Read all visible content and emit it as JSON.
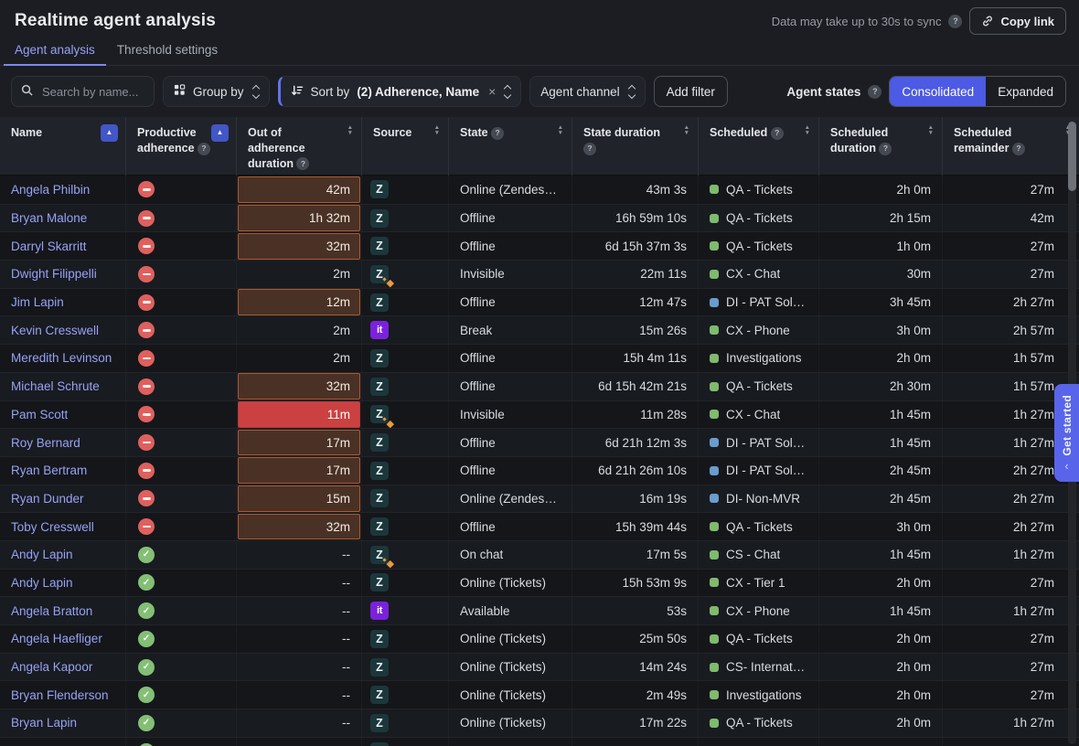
{
  "header": {
    "title": "Realtime agent analysis",
    "sync_note": "Data may take up to 30s to sync",
    "copy_link_label": "Copy link"
  },
  "tabs": [
    {
      "label": "Agent analysis",
      "active": true
    },
    {
      "label": "Threshold settings",
      "active": false
    }
  ],
  "toolbar": {
    "search_placeholder": "Search by name...",
    "group_by_label": "Group by",
    "sort_prefix": "Sort by",
    "sort_value": "(2) Adherence, Name",
    "agent_channel_label": "Agent channel",
    "add_filter_label": "Add filter",
    "agent_states_label": "Agent states",
    "toggle_options": [
      "Consolidated",
      "Expanded"
    ],
    "toggle_selected": "Consolidated"
  },
  "get_started_label": "Get started",
  "colors": {
    "accent_blue": "#4c5ae4",
    "link": "#98a2f4",
    "warn_bg": "#4a3126",
    "warn_border": "#aa5a2d",
    "alert_bg": "#cb4141",
    "adherence_bad": "#df605d",
    "adherence_good": "#83bf75",
    "dot_green": "#7fba6d",
    "dot_blue": "#699ccd",
    "zendesk_icon_bg": "#1c373b",
    "it_icon_bg": "#7a22dd",
    "get_started_bg": "#5865ea"
  },
  "table": {
    "columns": [
      {
        "label": "Name",
        "help": false,
        "sort": "asc"
      },
      {
        "label": "Productive adherence",
        "help": true,
        "sort": "asc"
      },
      {
        "label": "Out of adherence duration",
        "help": true,
        "sort": "both"
      },
      {
        "label": "Source",
        "help": false,
        "sort": "both"
      },
      {
        "label": "State",
        "help": true,
        "sort": "both"
      },
      {
        "label": "State duration",
        "help": true,
        "sort": "both"
      },
      {
        "label": "Scheduled",
        "help": true,
        "sort": "both"
      },
      {
        "label": "Scheduled duration",
        "help": true,
        "sort": "both"
      },
      {
        "label": "Scheduled remainder",
        "help": true,
        "sort": "both"
      }
    ],
    "rows": [
      {
        "name": "Angela Philbin",
        "adherence": "bad",
        "out": "42m",
        "out_style": "warn",
        "source": "zendesk",
        "state": "Online (Zendesk D...",
        "state_duration": "43m 3s",
        "sched_color": "green",
        "sched": "QA - Tickets",
        "sched_duration": "2h 0m",
        "sched_remainder": "27m"
      },
      {
        "name": "Bryan Malone",
        "adherence": "bad",
        "out": "1h 32m",
        "out_style": "warn",
        "source": "zendesk",
        "state": "Offline",
        "state_duration": "16h 59m 10s",
        "sched_color": "green",
        "sched": "QA - Tickets",
        "sched_duration": "2h 15m",
        "sched_remainder": "42m"
      },
      {
        "name": "Darryl Skarritt",
        "adherence": "bad",
        "out": "32m",
        "out_style": "warn",
        "source": "zendesk",
        "state": "Offline",
        "state_duration": "6d 15h 37m 3s",
        "sched_color": "green",
        "sched": "QA - Tickets",
        "sched_duration": "1h 0m",
        "sched_remainder": "27m"
      },
      {
        "name": "Dwight Filippelli",
        "adherence": "bad",
        "out": "2m",
        "out_style": "none",
        "source": "zendesk-sparkle",
        "state": "Invisible",
        "state_duration": "22m 11s",
        "sched_color": "green",
        "sched": "CX - Chat",
        "sched_duration": "30m",
        "sched_remainder": "27m"
      },
      {
        "name": "Jim Lapin",
        "adherence": "bad",
        "out": "12m",
        "out_style": "warn",
        "source": "zendesk",
        "state": "Offline",
        "state_duration": "12m 47s",
        "sched_color": "blue",
        "sched": "DI - PAT Solvable",
        "sched_duration": "3h 45m",
        "sched_remainder": "2h 27m"
      },
      {
        "name": "Kevin Cresswell",
        "adherence": "bad",
        "out": "2m",
        "out_style": "none",
        "source": "it",
        "state": "Break",
        "state_duration": "15m 26s",
        "sched_color": "green",
        "sched": "CX - Phone",
        "sched_duration": "3h 0m",
        "sched_remainder": "2h 57m"
      },
      {
        "name": "Meredith Levinson",
        "adherence": "bad",
        "out": "2m",
        "out_style": "none",
        "source": "zendesk",
        "state": "Offline",
        "state_duration": "15h 4m 11s",
        "sched_color": "green",
        "sched": "Investigations",
        "sched_duration": "2h 0m",
        "sched_remainder": "1h 57m"
      },
      {
        "name": "Michael Schrute",
        "adherence": "bad",
        "out": "32m",
        "out_style": "warn",
        "source": "zendesk",
        "state": "Offline",
        "state_duration": "6d 15h 42m 21s",
        "sched_color": "green",
        "sched": "QA - Tickets",
        "sched_duration": "2h 30m",
        "sched_remainder": "1h 57m"
      },
      {
        "name": "Pam Scott",
        "adherence": "bad",
        "out": "11m",
        "out_style": "alert",
        "source": "zendesk-sparkle",
        "state": "Invisible",
        "state_duration": "11m 28s",
        "sched_color": "green",
        "sched": "CX - Chat",
        "sched_duration": "1h 45m",
        "sched_remainder": "1h 27m"
      },
      {
        "name": "Roy Bernard",
        "adherence": "bad",
        "out": "17m",
        "out_style": "warn",
        "source": "zendesk",
        "state": "Offline",
        "state_duration": "6d 21h 12m 3s",
        "sched_color": "blue",
        "sched": "DI - PAT Solvable",
        "sched_duration": "1h 45m",
        "sched_remainder": "1h 27m"
      },
      {
        "name": "Ryan Bertram",
        "adherence": "bad",
        "out": "17m",
        "out_style": "warn",
        "source": "zendesk",
        "state": "Offline",
        "state_duration": "6d 21h 26m 10s",
        "sched_color": "blue",
        "sched": "DI - PAT Solvable",
        "sched_duration": "2h 45m",
        "sched_remainder": "2h 27m"
      },
      {
        "name": "Ryan Dunder",
        "adherence": "bad",
        "out": "15m",
        "out_style": "warn",
        "source": "zendesk",
        "state": "Online (Zendesk D...",
        "state_duration": "16m 19s",
        "sched_color": "blue",
        "sched": "DI- Non-MVR",
        "sched_duration": "2h 45m",
        "sched_remainder": "2h 27m"
      },
      {
        "name": "Toby Cresswell",
        "adherence": "bad",
        "out": "32m",
        "out_style": "warn",
        "source": "zendesk",
        "state": "Offline",
        "state_duration": "15h 39m 44s",
        "sched_color": "green",
        "sched": "QA - Tickets",
        "sched_duration": "3h 0m",
        "sched_remainder": "2h 27m"
      },
      {
        "name": "Andy Lapin",
        "adherence": "good",
        "out": "--",
        "out_style": "none",
        "source": "zendesk-sparkle",
        "state": "On chat",
        "state_duration": "17m 5s",
        "sched_color": "green",
        "sched": "CS - Chat",
        "sched_duration": "1h 45m",
        "sched_remainder": "1h 27m"
      },
      {
        "name": "Andy Lapin",
        "adherence": "good",
        "out": "--",
        "out_style": "none",
        "source": "zendesk",
        "state": "Online (Tickets)",
        "state_duration": "15h 53m 9s",
        "sched_color": "green",
        "sched": "CX - Tier 1",
        "sched_duration": "2h 0m",
        "sched_remainder": "27m"
      },
      {
        "name": "Angela Bratton",
        "adherence": "good",
        "out": "--",
        "out_style": "none",
        "source": "it",
        "state": "Available",
        "state_duration": "53s",
        "sched_color": "green",
        "sched": "CX - Phone",
        "sched_duration": "1h 45m",
        "sched_remainder": "1h 27m"
      },
      {
        "name": "Angela Haefliger",
        "adherence": "good",
        "out": "--",
        "out_style": "none",
        "source": "zendesk",
        "state": "Online (Tickets)",
        "state_duration": "25m 50s",
        "sched_color": "green",
        "sched": "QA - Tickets",
        "sched_duration": "2h 0m",
        "sched_remainder": "27m"
      },
      {
        "name": "Angela Kapoor",
        "adherence": "good",
        "out": "--",
        "out_style": "none",
        "source": "zendesk",
        "state": "Online (Tickets)",
        "state_duration": "14m 24s",
        "sched_color": "green",
        "sched": "CS- International",
        "sched_duration": "2h 0m",
        "sched_remainder": "27m"
      },
      {
        "name": "Bryan Flenderson",
        "adherence": "good",
        "out": "--",
        "out_style": "none",
        "source": "zendesk",
        "state": "Online (Tickets)",
        "state_duration": "2m 49s",
        "sched_color": "green",
        "sched": "Investigations",
        "sched_duration": "2h 0m",
        "sched_remainder": "27m"
      },
      {
        "name": "Bryan Lapin",
        "adherence": "good",
        "out": "--",
        "out_style": "none",
        "source": "zendesk",
        "state": "Online (Tickets)",
        "state_duration": "17m 22s",
        "sched_color": "green",
        "sched": "QA - Tickets",
        "sched_duration": "2h 0m",
        "sched_remainder": "1h 27m"
      },
      {
        "name": "",
        "adherence": "good",
        "out": "",
        "out_style": "none",
        "source": "zendesk",
        "state": "Online (Tickets)",
        "state_duration": "",
        "sched_color": "blue",
        "sched": "DI - PAT Solvable",
        "sched_duration": "",
        "sched_remainder": ""
      }
    ]
  }
}
